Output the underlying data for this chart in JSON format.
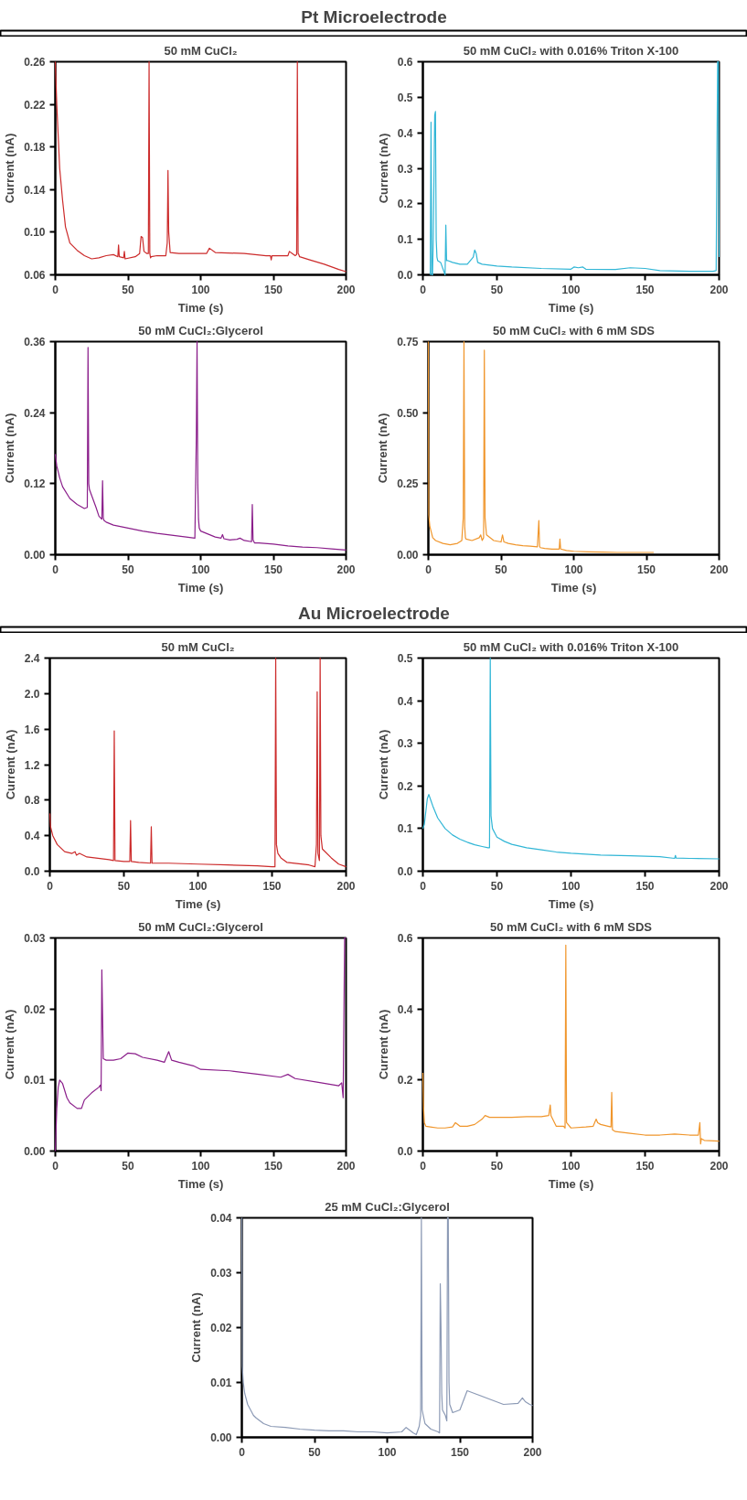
{
  "chart_data": [
    {
      "type": "other",
      "title": "Pt Microelectrode"
    },
    {
      "type": "line",
      "title": "50 mM CuCl₂",
      "xlabel": "Time (s)",
      "ylabel": "Current (nA)",
      "color": "#cc2b2b",
      "xlim": [
        0,
        200
      ],
      "xticks": [
        0,
        50,
        100,
        150,
        200
      ],
      "ylim": [
        0.06,
        0.26
      ],
      "yticks": [
        0.06,
        {
          "value": 0.1,
          "label": "0.10"
        },
        0.14,
        0.18,
        0.22,
        0.26
      ],
      "x": [
        0,
        0.5,
        1,
        2,
        3,
        5,
        7,
        10,
        15,
        20,
        25,
        30,
        35,
        40,
        43,
        43.5,
        44,
        47,
        47.5,
        48,
        55,
        58,
        59,
        60,
        61,
        63,
        64,
        64.5,
        65,
        65.5,
        66,
        70,
        76,
        77,
        77.5,
        78,
        79,
        85,
        100,
        104,
        106,
        110,
        130,
        145,
        148,
        148.5,
        149,
        155,
        160,
        161,
        163,
        165,
        166,
        166.5,
        167,
        167.5,
        168,
        175,
        185,
        195,
        200
      ],
      "values": [
        0.26,
        0.24,
        0.22,
        0.19,
        0.16,
        0.13,
        0.105,
        0.09,
        0.083,
        0.078,
        0.075,
        0.076,
        0.078,
        0.079,
        0.077,
        0.088,
        0.077,
        0.076,
        0.082,
        0.075,
        0.077,
        0.08,
        0.096,
        0.095,
        0.082,
        0.08,
        0.08,
        0.26,
        0.08,
        0.076,
        0.077,
        0.078,
        0.078,
        0.09,
        0.158,
        0.1,
        0.081,
        0.08,
        0.08,
        0.08,
        0.085,
        0.081,
        0.08,
        0.078,
        0.078,
        0.074,
        0.078,
        0.078,
        0.078,
        0.082,
        0.08,
        0.078,
        0.079,
        0.26,
        0.08,
        0.079,
        0.077,
        0.074,
        0.07,
        0.065,
        0.063
      ]
    },
    {
      "type": "line",
      "title": "50 mM CuCl₂ with 0.016% Triton X-100",
      "xlabel": "Time (s)",
      "ylabel": "Current (nA)",
      "color": "#31b6d6",
      "xlim": [
        0,
        200
      ],
      "xticks": [
        0,
        50,
        100,
        150,
        200
      ],
      "ylim": [
        0,
        0.6
      ],
      "yticks": [
        {
          "value": 0,
          "label": "0.0"
        },
        0.1,
        0.2,
        0.3,
        0.4,
        0.5,
        0.6
      ],
      "x": [
        5,
        5.5,
        6,
        6.5,
        7,
        8,
        8.5,
        9,
        9.5,
        10,
        12,
        15,
        15.5,
        16,
        17,
        20,
        25,
        30,
        34,
        35,
        36,
        37,
        40,
        50,
        60,
        80,
        100,
        102,
        105,
        108,
        110,
        130,
        140,
        150,
        160,
        180,
        196,
        198,
        199,
        199.5,
        200
      ],
      "values": [
        0.0,
        0.43,
        0.0,
        0.0,
        0.1,
        0.45,
        0.46,
        0.1,
        0.05,
        0.04,
        0.035,
        0.0,
        0.14,
        0.04,
        0.04,
        0.035,
        0.03,
        0.03,
        0.05,
        0.07,
        0.06,
        0.035,
        0.03,
        0.025,
        0.022,
        0.018,
        0.016,
        0.022,
        0.02,
        0.022,
        0.016,
        0.015,
        0.02,
        0.018,
        0.012,
        0.01,
        0.01,
        0.012,
        0.6,
        0.6,
        0.05
      ]
    },
    {
      "type": "line",
      "title": "50 mM CuCl₂:Glycerol",
      "xlabel": "Time (s)",
      "ylabel": "Current (nA)",
      "color": "#8b1f8b",
      "xlim": [
        0,
        200
      ],
      "xticks": [
        0,
        50,
        100,
        150,
        200
      ],
      "ylim": [
        0,
        0.36
      ],
      "yticks": [
        {
          "value": 0,
          "label": "0.00"
        },
        0.12,
        0.24,
        0.36
      ],
      "x": [
        0,
        1,
        3,
        5,
        10,
        15,
        20,
        22,
        22.5,
        23,
        23.5,
        25,
        28,
        30,
        32,
        32.5,
        33,
        33.5,
        35,
        40,
        50,
        60,
        70,
        80,
        90,
        96,
        97,
        97.5,
        98,
        98.5,
        99,
        100,
        105,
        110,
        114,
        115,
        116,
        120,
        125,
        127,
        130,
        135,
        135.5,
        136,
        137,
        140,
        150,
        160,
        170,
        180,
        190,
        200
      ],
      "values": [
        0.17,
        0.15,
        0.13,
        0.115,
        0.095,
        0.085,
        0.078,
        0.08,
        0.35,
        0.12,
        0.11,
        0.1,
        0.08,
        0.065,
        0.06,
        0.125,
        0.062,
        0.058,
        0.055,
        0.05,
        0.045,
        0.04,
        0.036,
        0.033,
        0.03,
        0.028,
        0.2,
        0.36,
        0.12,
        0.06,
        0.045,
        0.04,
        0.035,
        0.03,
        0.028,
        0.034,
        0.027,
        0.025,
        0.026,
        0.028,
        0.024,
        0.022,
        0.085,
        0.025,
        0.02,
        0.02,
        0.018,
        0.015,
        0.013,
        0.012,
        0.01,
        0.008
      ]
    },
    {
      "type": "line",
      "title": "50 mM CuCl₂ with 6 mM SDS",
      "xlabel": "Time (s)",
      "ylabel": "Current (nA)",
      "color": "#f0962c",
      "xlim": [
        0,
        200
      ],
      "xticks": [
        0,
        50,
        100,
        150,
        200
      ],
      "ylim": [
        0,
        0.75
      ],
      "yticks": [
        {
          "value": 0,
          "label": "0.00"
        },
        0.25,
        {
          "value": 0.5,
          "label": "0.50"
        },
        0.75
      ],
      "x": [
        0,
        0.3,
        1,
        3,
        5,
        10,
        15,
        20,
        23,
        24,
        24.5,
        25,
        25.5,
        26,
        30,
        35,
        36,
        37,
        38,
        38.5,
        39,
        40,
        45,
        50,
        51,
        52,
        55,
        60,
        65,
        70,
        75,
        76,
        76.5,
        77,
        80,
        85,
        90,
        90.5,
        91,
        95,
        100,
        110,
        120,
        130,
        140,
        150,
        155
      ],
      "values": [
        0.75,
        0.14,
        0.1,
        0.06,
        0.05,
        0.04,
        0.035,
        0.04,
        0.05,
        0.13,
        0.75,
        0.1,
        0.06,
        0.055,
        0.05,
        0.06,
        0.07,
        0.05,
        0.06,
        0.72,
        0.13,
        0.07,
        0.05,
        0.045,
        0.07,
        0.045,
        0.04,
        0.035,
        0.032,
        0.03,
        0.028,
        0.12,
        0.03,
        0.025,
        0.022,
        0.02,
        0.02,
        0.055,
        0.02,
        0.015,
        0.012,
        0.01,
        0.009,
        0.008,
        0.008,
        0.008,
        0.008
      ]
    },
    {
      "type": "other",
      "title": "Au Microelectrode"
    },
    {
      "type": "line",
      "title": "50 mM CuCl₂",
      "xlabel": "Time (s)",
      "ylabel": "Current (nA)",
      "color": "#cc2b2b",
      "xlim": [
        0,
        200
      ],
      "xticks": [
        0,
        50,
        100,
        150,
        200
      ],
      "ylim": [
        0,
        2.4
      ],
      "yticks": [
        {
          "value": 0,
          "label": "0.0"
        },
        0.4,
        0.8,
        1.2,
        1.6,
        {
          "value": 2,
          "label": "2.0"
        },
        2.4
      ],
      "x": [
        0,
        0.5,
        2,
        5,
        10,
        15,
        17,
        18,
        20,
        25,
        30,
        35,
        40,
        43,
        43.5,
        44,
        50,
        54,
        54.5,
        55,
        60,
        68,
        68.5,
        69,
        80,
        100,
        120,
        140,
        150,
        152,
        152.5,
        153,
        154,
        156,
        160,
        175,
        179,
        180,
        180.5,
        181,
        182,
        182.5,
        183,
        184,
        190,
        195,
        200
      ],
      "values": [
        0.65,
        0.5,
        0.4,
        0.3,
        0.22,
        0.2,
        0.22,
        0.18,
        0.2,
        0.16,
        0.15,
        0.14,
        0.13,
        0.12,
        1.58,
        0.12,
        0.11,
        0.11,
        0.57,
        0.11,
        0.1,
        0.09,
        0.5,
        0.09,
        0.09,
        0.08,
        0.07,
        0.06,
        0.05,
        0.05,
        2.4,
        0.3,
        0.2,
        0.15,
        0.1,
        0.07,
        0.05,
        0.3,
        2.02,
        0.2,
        0.12,
        2.4,
        0.4,
        0.25,
        0.15,
        0.08,
        0.05
      ]
    },
    {
      "type": "line",
      "title": "50 mM CuCl₂ with 0.016% Triton X-100",
      "xlabel": "Time (s)",
      "ylabel": "Current (nA)",
      "color": "#31b6d6",
      "xlim": [
        0,
        200
      ],
      "xticks": [
        0,
        50,
        100,
        150,
        200
      ],
      "ylim": [
        0,
        0.5
      ],
      "yticks": [
        {
          "value": 0,
          "label": "0.0"
        },
        0.1,
        0.2,
        0.3,
        0.4,
        0.5
      ],
      "x": [
        0,
        1,
        2,
        3,
        4,
        5,
        7,
        10,
        15,
        20,
        25,
        30,
        35,
        40,
        44,
        45,
        45.5,
        46,
        47,
        50,
        55,
        60,
        70,
        80,
        90,
        100,
        120,
        140,
        160,
        170,
        170.5,
        171,
        180,
        200
      ],
      "values": [
        0.1,
        0.11,
        0.14,
        0.17,
        0.18,
        0.17,
        0.15,
        0.125,
        0.1,
        0.085,
        0.075,
        0.068,
        0.062,
        0.058,
        0.055,
        0.055,
        0.5,
        0.13,
        0.1,
        0.08,
        0.07,
        0.063,
        0.055,
        0.05,
        0.045,
        0.042,
        0.038,
        0.036,
        0.034,
        0.03,
        0.037,
        0.031,
        0.03,
        0.029
      ]
    },
    {
      "type": "line",
      "title": "50 mM CuCl₂:Glycerol",
      "xlabel": "Time (s)",
      "ylabel": "Current (nA)",
      "color": "#8b1f8b",
      "xlim": [
        0,
        200
      ],
      "xticks": [
        0,
        50,
        100,
        150,
        200
      ],
      "ylim": [
        0,
        0.03
      ],
      "yticks": [
        {
          "value": 0,
          "label": "0.00"
        },
        0.01,
        0.02,
        0.03
      ],
      "x": [
        0,
        0.5,
        1,
        2,
        3,
        5,
        8,
        10,
        15,
        18,
        20,
        25,
        30,
        31,
        31.5,
        32,
        33,
        35,
        40,
        45,
        50,
        55,
        60,
        70,
        75,
        78,
        80,
        85,
        95,
        100,
        120,
        140,
        155,
        160,
        165,
        180,
        195,
        197,
        198,
        199,
        200
      ],
      "values": [
        0.0,
        0.003,
        0.006,
        0.009,
        0.01,
        0.0095,
        0.0075,
        0.0068,
        0.006,
        0.006,
        0.0072,
        0.0082,
        0.009,
        0.0093,
        0.0085,
        0.0255,
        0.013,
        0.0128,
        0.0128,
        0.013,
        0.0138,
        0.0137,
        0.0132,
        0.0128,
        0.0125,
        0.014,
        0.0128,
        0.0125,
        0.012,
        0.0115,
        0.0113,
        0.0108,
        0.0104,
        0.0108,
        0.0102,
        0.0097,
        0.0092,
        0.0096,
        0.0075,
        0.03,
        0.03
      ]
    },
    {
      "type": "line",
      "title": "50 mM CuCl₂ with 6 mM SDS",
      "xlabel": "Time (s)",
      "ylabel": "Current (nA)",
      "color": "#f0962c",
      "xlim": [
        0,
        200
      ],
      "xticks": [
        0,
        50,
        100,
        150,
        200
      ],
      "ylim": [
        0,
        0.6
      ],
      "yticks": [
        {
          "value": 0,
          "label": "0.0"
        },
        0.2,
        0.4,
        0.6
      ],
      "x": [
        0,
        0.5,
        1,
        2,
        5,
        10,
        15,
        20,
        22,
        25,
        30,
        35,
        40,
        42,
        45,
        50,
        60,
        70,
        80,
        85,
        86,
        86.5,
        90,
        95,
        96,
        96.5,
        97,
        100,
        110,
        115,
        117,
        118,
        120,
        125,
        127,
        127.5,
        128,
        130,
        140,
        150,
        160,
        170,
        180,
        186,
        187,
        187.5,
        188,
        190,
        200
      ],
      "values": [
        0.22,
        0.12,
        0.08,
        0.07,
        0.068,
        0.065,
        0.065,
        0.068,
        0.08,
        0.07,
        0.07,
        0.075,
        0.09,
        0.1,
        0.095,
        0.095,
        0.095,
        0.097,
        0.097,
        0.1,
        0.13,
        0.1,
        0.07,
        0.07,
        0.065,
        0.58,
        0.08,
        0.065,
        0.068,
        0.07,
        0.09,
        0.08,
        0.075,
        0.07,
        0.068,
        0.165,
        0.06,
        0.055,
        0.05,
        0.045,
        0.045,
        0.048,
        0.045,
        0.045,
        0.08,
        0.02,
        0.035,
        0.03,
        0.028
      ]
    },
    {
      "type": "line",
      "title": "25 mM CuCl₂:Glycerol",
      "ylabel": "Current (nA)",
      "color": "#8c9ab5",
      "xlim": [
        0,
        200
      ],
      "xticks": [
        0,
        50,
        100,
        150,
        200
      ],
      "ylim": [
        0,
        0.04
      ],
      "yticks": [
        {
          "value": 0,
          "label": "0.00"
        },
        0.01,
        0.02,
        0.03,
        0.04
      ],
      "x": [
        0,
        0.3,
        1,
        2,
        4,
        6,
        8,
        10,
        15,
        20,
        30,
        40,
        50,
        60,
        70,
        80,
        90,
        100,
        110,
        113,
        118,
        120,
        122,
        123,
        123.5,
        124,
        126,
        130,
        135,
        136,
        136.5,
        137,
        137.5,
        138,
        140,
        141,
        141.5,
        142,
        142.5,
        143,
        145,
        150,
        155,
        160,
        170,
        180,
        190,
        193,
        195,
        198,
        200
      ],
      "values": [
        0.04,
        0.013,
        0.01,
        0.008,
        0.006,
        0.005,
        0.004,
        0.0035,
        0.0025,
        0.002,
        0.0018,
        0.0015,
        0.0013,
        0.0012,
        0.0012,
        0.001,
        0.001,
        0.0008,
        0.001,
        0.0018,
        0.0008,
        0.0005,
        0.002,
        0.004,
        0.04,
        0.005,
        0.0025,
        0.0015,
        0.001,
        0.0008,
        0.028,
        0.02,
        0.008,
        0.005,
        0.004,
        0.003,
        0.04,
        0.04,
        0.01,
        0.006,
        0.0045,
        0.005,
        0.0085,
        0.008,
        0.007,
        0.006,
        0.0062,
        0.0072,
        0.0065,
        0.006,
        0.0058
      ]
    }
  ]
}
